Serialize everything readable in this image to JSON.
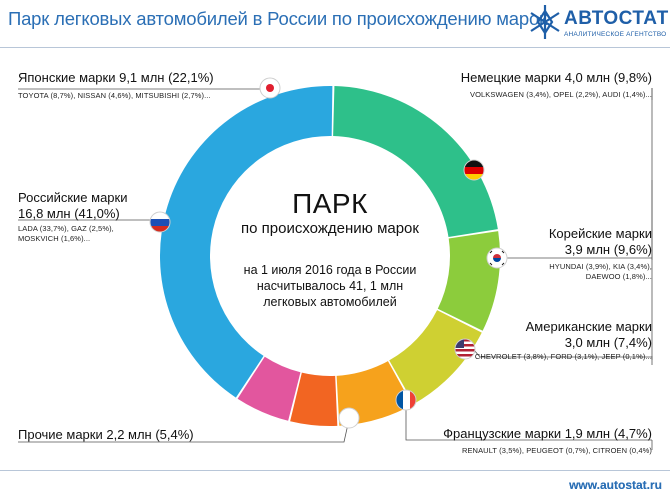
{
  "header": {
    "title": "Парк легковых автомобилей в России по происхождению марок",
    "logo_name": "АВТОСТАТ",
    "logo_sub": "АНАЛИТИЧЕСКОЕ АГЕНТСТВО"
  },
  "center": {
    "title": "ПАРК",
    "subtitle": "по  происхождению марок",
    "note_1": "на 1 июля 2016 года в России",
    "note_2": "насчитывалось 41, 1 млн",
    "note_3": "легковых автомобилей"
  },
  "footer": {
    "url": "www.autostat.ru"
  },
  "labels": {
    "japan": {
      "title": "Японские марки 9,1 млн (22,1%)",
      "brands": "TOYOTA  (8,7%), NISSAN (4,6%), MITSUBISHI (2,7%)..."
    },
    "germany": {
      "title": "Немецкие марки 4,0 млн (9,8%)",
      "brands": "VOLKSWAGEN (3,4%), OPEL (2,2%), AUDI (1,4%)..."
    },
    "russia": {
      "title_1": "Российские марки",
      "title_2": "16,8 млн (41,0%)",
      "brands_1": "LADA (33,7%), GAZ (2,5%),",
      "brands_2": "MOSKVICH (1,6%)..."
    },
    "korea": {
      "title_1": "Корейские марки",
      "title_2": "3,9 млн (9,6%)",
      "brands_1": "HYUNDAI (3,9%), KIA (3,4%),",
      "brands_2": "DAEWOO (1,8%)..."
    },
    "usa": {
      "title_1": "Американские марки",
      "title_2": "3,0 млн (7,4%)",
      "brands": "CHEVROLET (3,8%), FORD (3,1%), JEEP (0,1%)..."
    },
    "france": {
      "title": "Французские марки 1,9 млн (4,7%)",
      "brands": "RENAULT (3,5%), PEUGEOT (0,7%), CITROEN (0,4%)"
    },
    "other": {
      "title": "Прочие марки  2,2 млн (5,4%)"
    }
  },
  "colors": {
    "russia": "#2aa7df",
    "japan": "#2ec08a",
    "germany": "#8ccc3c",
    "korea": "#cfd032",
    "usa": "#f6a21c",
    "france": "#f26522",
    "other": "#e2569e",
    "accent": "#2b6fb5"
  },
  "chart_data": {
    "type": "pie",
    "title": "Парк легковых автомобилей в России по происхождению марок",
    "unit": "млн",
    "categories": [
      "Японские марки",
      "Немецкие марки",
      "Корейские марки",
      "Американские марки",
      "Французские марки",
      "Прочие марки",
      "Российские марки"
    ],
    "values": [
      9.1,
      4.0,
      3.9,
      3.0,
      1.9,
      2.2,
      16.8
    ],
    "percent": [
      22.1,
      9.8,
      9.6,
      7.4,
      4.7,
      5.4,
      41.0
    ],
    "colors": [
      "#2ec08a",
      "#8ccc3c",
      "#cfd032",
      "#f6a21c",
      "#f26522",
      "#e2569e",
      "#2aa7df"
    ],
    "flags": [
      "japan-flag-icon",
      "germany-flag-icon",
      "korea-flag-icon",
      "usa-flag-icon",
      "france-flag-icon",
      "other-dot-icon",
      "russia-flag-icon"
    ]
  }
}
